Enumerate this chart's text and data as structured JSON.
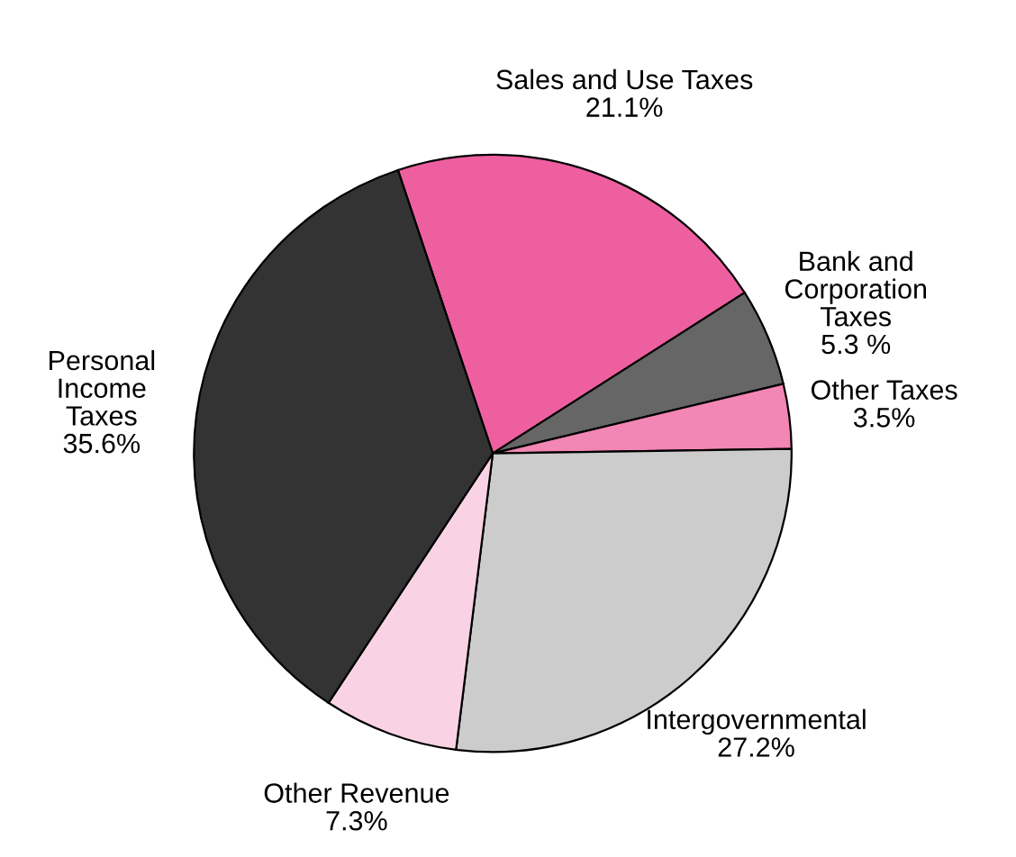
{
  "chart_data": {
    "type": "pie",
    "categories": [
      "Sales and Use Taxes",
      "Bank and\nCorporation\nTaxes",
      "Other Taxes",
      "Intergovernmental",
      "Other Revenue",
      "Personal\nIncome\nTaxes"
    ],
    "values": [
      21.1,
      5.3,
      3.5,
      27.2,
      7.3,
      35.6
    ],
    "value_labels": [
      "21.1%",
      "5.3 %",
      "3.5%",
      "27.2%",
      "7.3%",
      "35.6%"
    ],
    "colors": [
      "#ee5fa0",
      "#666666",
      "#f286b4",
      "#cccccc",
      "#f9d3e4",
      "#333333"
    ],
    "legend": false
  }
}
